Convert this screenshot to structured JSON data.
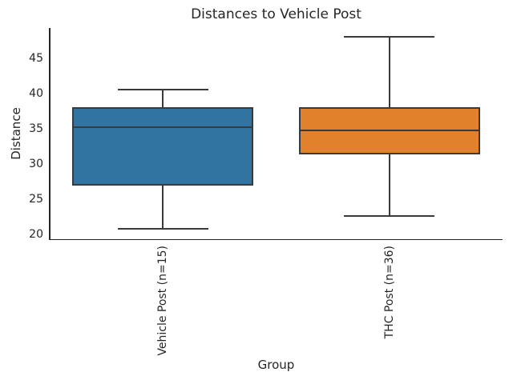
{
  "chart_data": {
    "type": "box",
    "title": "Distances to Vehicle Post",
    "xlabel": "Group",
    "ylabel": "Distance",
    "ylim": [
      19.3,
      49.3
    ],
    "yticks": [
      20,
      25,
      30,
      35,
      40,
      45
    ],
    "grid": false,
    "legend": "none",
    "categories": [
      "Vehicle Post (n=15)",
      "THC Post (n=36)"
    ],
    "series": [
      {
        "name": "Vehicle Post (n=15)",
        "whisker_low": 20.8,
        "q1": 26.9,
        "median": 35.2,
        "q3": 38.1,
        "whisker_high": 40.5,
        "fill_color": "#3274a1"
      },
      {
        "name": "THC Post (n=36)",
        "whisker_low": 22.6,
        "q1": 31.4,
        "median": 34.7,
        "q3": 38.1,
        "whisker_high": 48.0,
        "fill_color": "#e1812c"
      }
    ],
    "line_color": "#3a3a3a"
  }
}
